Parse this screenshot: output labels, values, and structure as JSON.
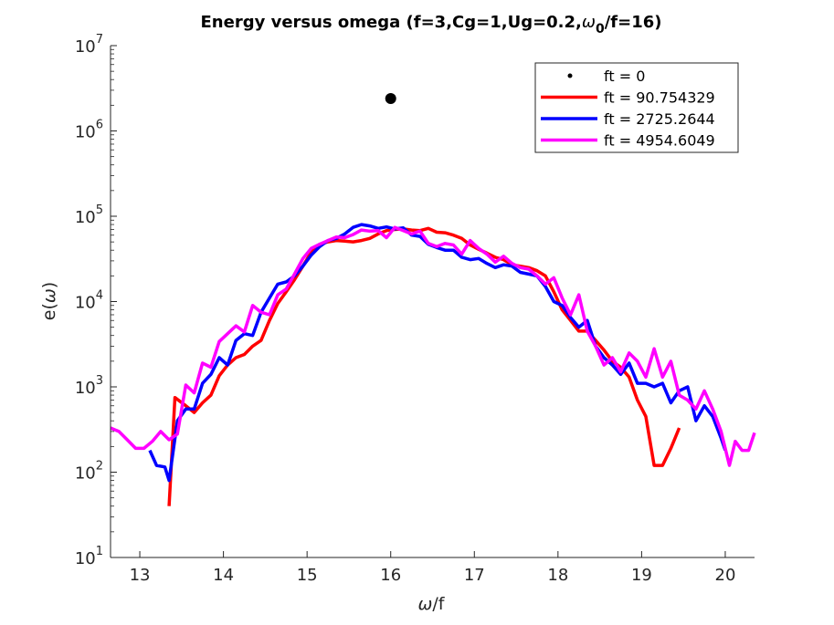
{
  "chart_data": {
    "type": "line",
    "title_prefix": "Energy versus omega (f=3,Cg=1,Ug=0.2,",
    "title_omega": "ω",
    "title_sub": "0",
    "title_suffix": "/f=16)",
    "xlabel_sym": "ω",
    "xlabel_rest": "/f",
    "ylabel_pre": "e(",
    "ylabel_sym": "ω",
    "ylabel_post": ")",
    "xlim": [
      12.65,
      20.35
    ],
    "ylim": [
      10,
      10000000
    ],
    "yscale": "log",
    "xticks": [
      13,
      14,
      15,
      16,
      17,
      18,
      19,
      20
    ],
    "xtick_labels": [
      "13",
      "14",
      "15",
      "16",
      "17",
      "18",
      "19",
      "20"
    ],
    "yticks": [
      10,
      100,
      1000,
      10000,
      100000,
      1000000,
      10000000
    ],
    "ytick_mantissa": "10",
    "ytick_exponents": [
      "1",
      "2",
      "3",
      "4",
      "5",
      "6",
      "7"
    ],
    "legend_position": "top-right",
    "series": [
      {
        "name": "ft = 0",
        "color": "#000000",
        "style": "marker",
        "points": [
          [
            16.0,
            2400000
          ]
        ]
      },
      {
        "name": "ft = 90.754329",
        "color": "#ff0000",
        "style": "line",
        "points": [
          [
            13.35,
            40
          ],
          [
            13.42,
            750
          ],
          [
            13.55,
            600
          ],
          [
            13.65,
            500
          ],
          [
            13.75,
            650
          ],
          [
            13.85,
            800
          ],
          [
            13.95,
            1350
          ],
          [
            14.05,
            1800
          ],
          [
            14.15,
            2200
          ],
          [
            14.25,
            2400
          ],
          [
            14.35,
            3000
          ],
          [
            14.45,
            3500
          ],
          [
            14.55,
            6000
          ],
          [
            14.65,
            9500
          ],
          [
            14.75,
            13000
          ],
          [
            14.85,
            18000
          ],
          [
            14.95,
            26000
          ],
          [
            15.05,
            38000
          ],
          [
            15.15,
            47000
          ],
          [
            15.25,
            50000
          ],
          [
            15.35,
            52000
          ],
          [
            15.45,
            51000
          ],
          [
            15.55,
            50000
          ],
          [
            15.65,
            52000
          ],
          [
            15.75,
            55000
          ],
          [
            15.85,
            62000
          ],
          [
            15.95,
            68000
          ],
          [
            16.05,
            70000
          ],
          [
            16.15,
            71000
          ],
          [
            16.25,
            69000
          ],
          [
            16.35,
            68000
          ],
          [
            16.45,
            72000
          ],
          [
            16.55,
            65000
          ],
          [
            16.65,
            64000
          ],
          [
            16.75,
            60000
          ],
          [
            16.85,
            55000
          ],
          [
            16.95,
            46000
          ],
          [
            17.05,
            41000
          ],
          [
            17.15,
            37000
          ],
          [
            17.25,
            33000
          ],
          [
            17.35,
            31000
          ],
          [
            17.45,
            27000
          ],
          [
            17.55,
            26000
          ],
          [
            17.65,
            25000
          ],
          [
            17.75,
            23000
          ],
          [
            17.85,
            20000
          ],
          [
            17.95,
            13000
          ],
          [
            18.05,
            8000
          ],
          [
            18.15,
            6000
          ],
          [
            18.25,
            4500
          ],
          [
            18.35,
            4500
          ],
          [
            18.45,
            3500
          ],
          [
            18.55,
            2700
          ],
          [
            18.65,
            2000
          ],
          [
            18.75,
            1700
          ],
          [
            18.85,
            1300
          ],
          [
            18.95,
            700
          ],
          [
            19.05,
            450
          ],
          [
            19.15,
            120
          ],
          [
            19.25,
            120
          ],
          [
            19.35,
            190
          ],
          [
            19.45,
            330
          ]
        ]
      },
      {
        "name": "ft = 2725.2644",
        "color": "#0000ff",
        "style": "line",
        "points": [
          [
            13.12,
            180
          ],
          [
            13.2,
            120
          ],
          [
            13.3,
            115
          ],
          [
            13.35,
            80
          ],
          [
            13.45,
            400
          ],
          [
            13.55,
            550
          ],
          [
            13.65,
            550
          ],
          [
            13.75,
            1100
          ],
          [
            13.85,
            1400
          ],
          [
            13.95,
            2200
          ],
          [
            14.05,
            1800
          ],
          [
            14.15,
            3500
          ],
          [
            14.25,
            4200
          ],
          [
            14.35,
            4000
          ],
          [
            14.45,
            7500
          ],
          [
            14.55,
            11000
          ],
          [
            14.65,
            16000
          ],
          [
            14.75,
            17000
          ],
          [
            14.85,
            20000
          ],
          [
            14.95,
            26000
          ],
          [
            15.05,
            35000
          ],
          [
            15.15,
            44000
          ],
          [
            15.25,
            52000
          ],
          [
            15.35,
            55000
          ],
          [
            15.45,
            62000
          ],
          [
            15.55,
            74000
          ],
          [
            15.65,
            80000
          ],
          [
            15.75,
            77000
          ],
          [
            15.85,
            72000
          ],
          [
            15.95,
            75000
          ],
          [
            16.05,
            71000
          ],
          [
            16.15,
            73000
          ],
          [
            16.25,
            60000
          ],
          [
            16.35,
            58000
          ],
          [
            16.45,
            47000
          ],
          [
            16.55,
            43000
          ],
          [
            16.65,
            40000
          ],
          [
            16.75,
            40000
          ],
          [
            16.85,
            33000
          ],
          [
            16.95,
            31000
          ],
          [
            17.05,
            32000
          ],
          [
            17.15,
            28000
          ],
          [
            17.25,
            25000
          ],
          [
            17.35,
            27000
          ],
          [
            17.45,
            26000
          ],
          [
            17.55,
            22000
          ],
          [
            17.65,
            21000
          ],
          [
            17.75,
            20000
          ],
          [
            17.85,
            15000
          ],
          [
            17.95,
            10000
          ],
          [
            18.05,
            9000
          ],
          [
            18.15,
            6500
          ],
          [
            18.25,
            5000
          ],
          [
            18.35,
            6000
          ],
          [
            18.45,
            3000
          ],
          [
            18.55,
            2200
          ],
          [
            18.65,
            1800
          ],
          [
            18.75,
            1400
          ],
          [
            18.85,
            1900
          ],
          [
            18.95,
            1100
          ],
          [
            19.05,
            1100
          ],
          [
            19.15,
            1000
          ],
          [
            19.25,
            1100
          ],
          [
            19.35,
            650
          ],
          [
            19.45,
            900
          ],
          [
            19.55,
            1000
          ],
          [
            19.65,
            400
          ],
          [
            19.75,
            600
          ],
          [
            19.85,
            450
          ],
          [
            19.95,
            250
          ],
          [
            20.0,
            180
          ]
        ]
      },
      {
        "name": "ft = 4954.6049",
        "color": "#ff00ff",
        "style": "line",
        "points": [
          [
            12.65,
            330
          ],
          [
            12.75,
            300
          ],
          [
            12.85,
            240
          ],
          [
            12.95,
            190
          ],
          [
            13.05,
            190
          ],
          [
            13.15,
            230
          ],
          [
            13.25,
            300
          ],
          [
            13.35,
            240
          ],
          [
            13.45,
            280
          ],
          [
            13.55,
            1050
          ],
          [
            13.65,
            850
          ],
          [
            13.75,
            1900
          ],
          [
            13.85,
            1700
          ],
          [
            13.95,
            3400
          ],
          [
            14.05,
            4200
          ],
          [
            14.15,
            5200
          ],
          [
            14.25,
            4400
          ],
          [
            14.35,
            9000
          ],
          [
            14.45,
            7500
          ],
          [
            14.55,
            7000
          ],
          [
            14.65,
            12000
          ],
          [
            14.75,
            14000
          ],
          [
            14.85,
            21000
          ],
          [
            14.95,
            32000
          ],
          [
            15.05,
            42000
          ],
          [
            15.15,
            47000
          ],
          [
            15.25,
            52000
          ],
          [
            15.35,
            57000
          ],
          [
            15.45,
            56000
          ],
          [
            15.55,
            61000
          ],
          [
            15.65,
            69000
          ],
          [
            15.75,
            67000
          ],
          [
            15.85,
            68000
          ],
          [
            15.95,
            56000
          ],
          [
            16.05,
            74000
          ],
          [
            16.15,
            68000
          ],
          [
            16.25,
            62000
          ],
          [
            16.35,
            67000
          ],
          [
            16.45,
            48000
          ],
          [
            16.55,
            44000
          ],
          [
            16.65,
            48000
          ],
          [
            16.75,
            46000
          ],
          [
            16.85,
            36000
          ],
          [
            16.95,
            52000
          ],
          [
            17.05,
            42000
          ],
          [
            17.15,
            36000
          ],
          [
            17.25,
            29000
          ],
          [
            17.35,
            34000
          ],
          [
            17.45,
            28000
          ],
          [
            17.55,
            25000
          ],
          [
            17.65,
            24000
          ],
          [
            17.75,
            20000
          ],
          [
            17.85,
            16000
          ],
          [
            17.95,
            19000
          ],
          [
            18.05,
            11000
          ],
          [
            18.15,
            7000
          ],
          [
            18.25,
            12000
          ],
          [
            18.35,
            4500
          ],
          [
            18.45,
            3000
          ],
          [
            18.55,
            1800
          ],
          [
            18.65,
            2200
          ],
          [
            18.75,
            1500
          ],
          [
            18.85,
            2500
          ],
          [
            18.95,
            2000
          ],
          [
            19.05,
            1300
          ],
          [
            19.15,
            2800
          ],
          [
            19.25,
            1300
          ],
          [
            19.35,
            2000
          ],
          [
            19.45,
            800
          ],
          [
            19.55,
            700
          ],
          [
            19.65,
            550
          ],
          [
            19.75,
            900
          ],
          [
            19.85,
            550
          ],
          [
            19.95,
            300
          ],
          [
            20.05,
            120
          ],
          [
            20.12,
            230
          ],
          [
            20.2,
            180
          ],
          [
            20.28,
            180
          ],
          [
            20.35,
            290
          ]
        ]
      }
    ]
  }
}
